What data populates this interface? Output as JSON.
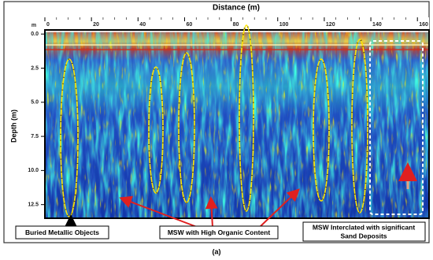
{
  "chart_data": {
    "type": "radargram",
    "title": "Distance (m)",
    "y_label": "Depth (m)",
    "y_unit": "m",
    "xlim": [
      0,
      165
    ],
    "xticks": [
      0,
      20,
      40,
      60,
      80,
      100,
      120,
      140,
      160
    ],
    "ylim": [
      -0.3,
      13.5
    ],
    "yticks": [
      {
        "value": 0,
        "label": "0.0"
      },
      2.5,
      {
        "value": 5,
        "label": "5.0"
      },
      7.5,
      {
        "value": 10,
        "label": "10.0"
      },
      12.5
    ],
    "annotations": [
      [
        "Buried Metallic Objects"
      ],
      [
        "MSW with High Organic Content"
      ],
      [
        "MSW Interclated with significant",
        "Sand Deposits"
      ]
    ],
    "caption": "(a)"
  }
}
